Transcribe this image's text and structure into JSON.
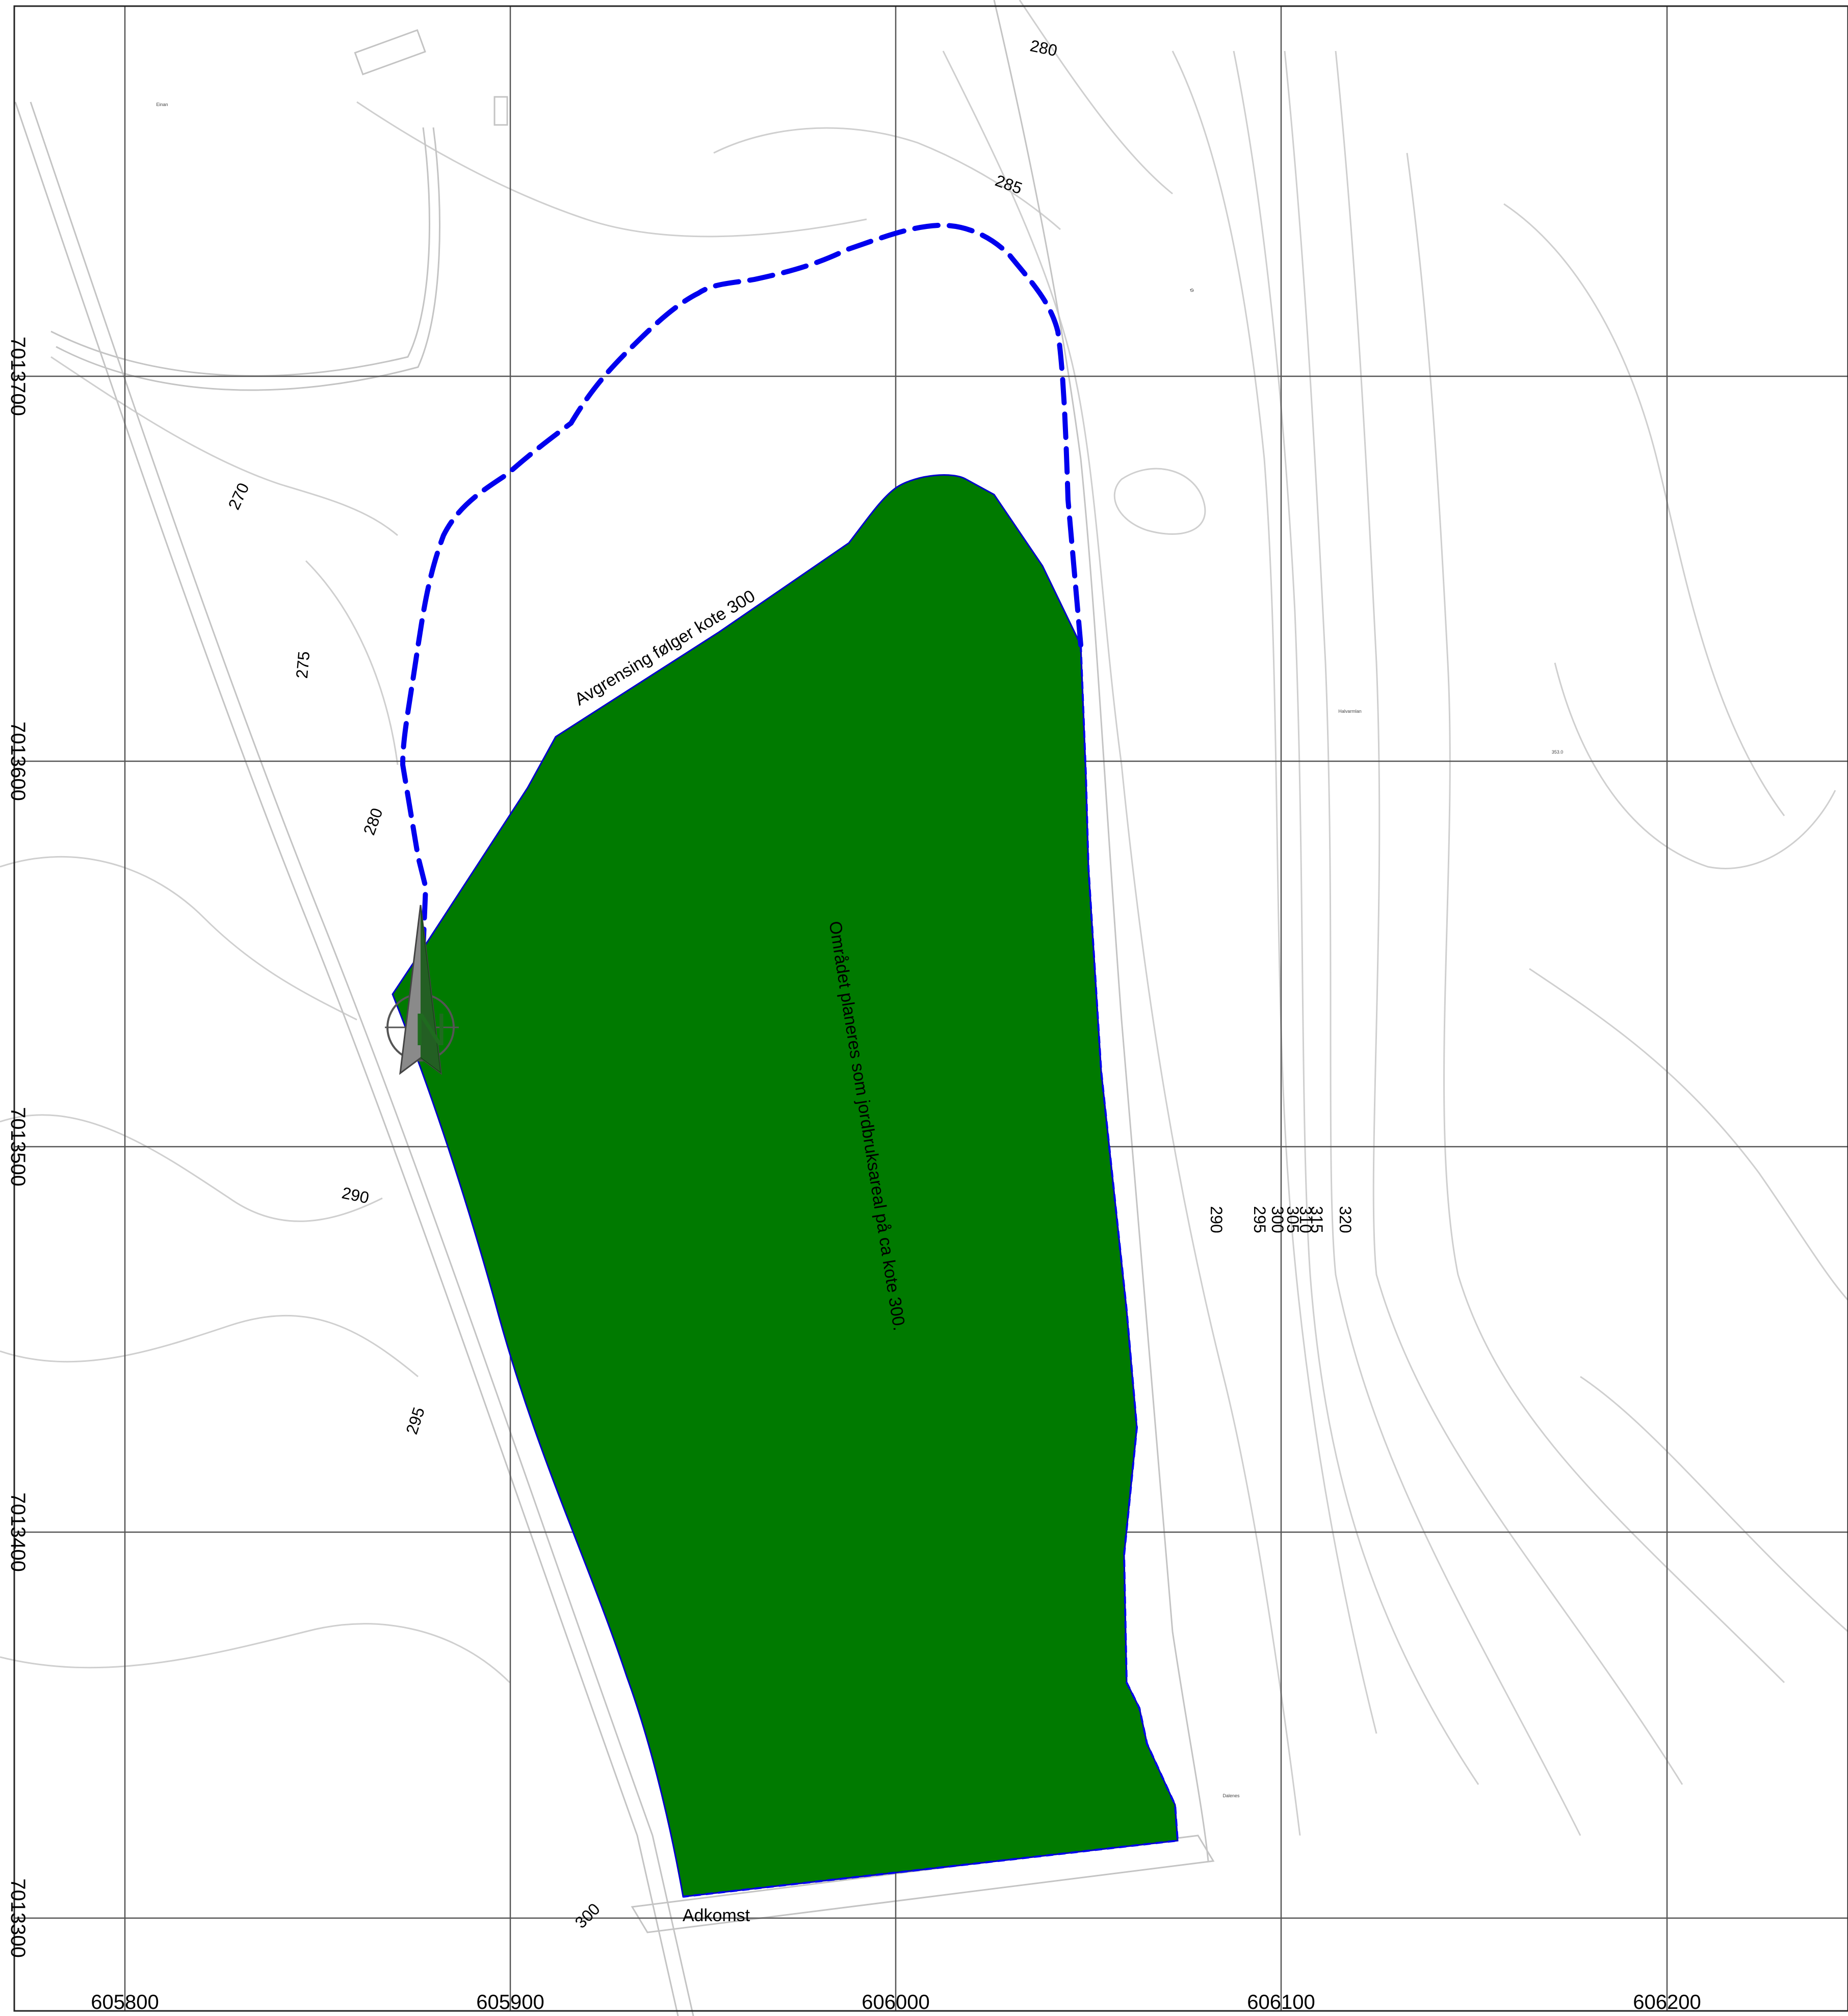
{
  "map": {
    "easting_labels": [
      "605800",
      "605900",
      "606000",
      "606100",
      "606200"
    ],
    "northing_labels": [
      "7013700",
      "7013600",
      "7013500",
      "7013400",
      "7013300"
    ],
    "contour_labels": {
      "c270": "270",
      "c275": "275",
      "c280_west": "280",
      "c280_north": "280",
      "c285": "285",
      "c290_west": "290",
      "c290_east": "290",
      "c295_west": "295",
      "c295_east": "295",
      "c300_east": "300",
      "c305": "305",
      "c310": "310",
      "c315": "315",
      "c320": "320",
      "c300_south": "300"
    },
    "annotations": {
      "boundary_note": "Avgrensing følger kote 300",
      "area_note": "Området planeres som jordbruksareal på ca kote 300.",
      "access": "Adkomst"
    },
    "place_names": {
      "einan": "Einan",
      "halvarmoen": "Halvarmlan",
      "dalenes": "Dalenes",
      "spot": "353.0",
      "small": "Ø"
    },
    "colors": {
      "planned_area": "#007a00",
      "boundary": "#0000ee",
      "grid": "#555555",
      "contour": "#cfcfcf"
    },
    "icons": {
      "north_arrow": "north-arrow-icon"
    }
  }
}
